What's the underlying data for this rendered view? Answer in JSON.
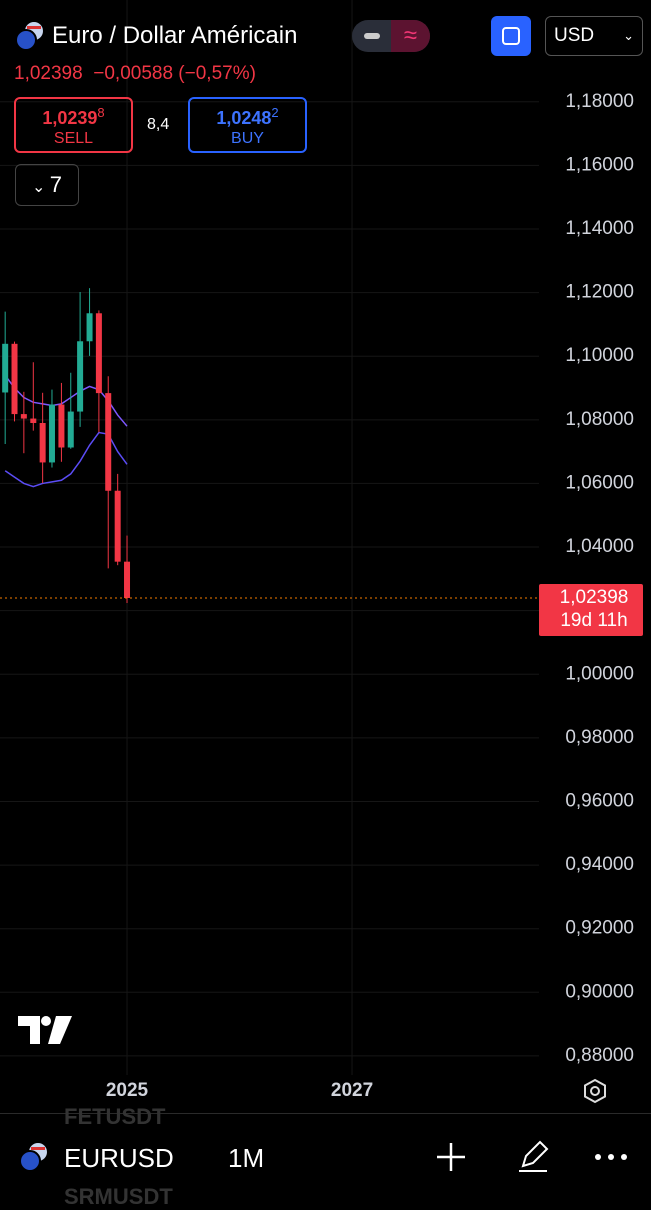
{
  "header": {
    "title": "Euro / Dollar Américain",
    "price": "1,02398",
    "change": "−0,00588 (−0,57%)",
    "sell": {
      "price": "1,0239",
      "pip": "8",
      "label": "SELL"
    },
    "spread": "8,4",
    "buy": {
      "price": "1,0248",
      "pip": "2",
      "label": "BUY"
    },
    "indicators_count": "7",
    "currency": "USD"
  },
  "footer": {
    "symbol": "EURUSD",
    "interval": "1M",
    "ghost_above": "FETUSDT",
    "ghost_below": "SRMUSDT"
  },
  "chart_data": {
    "type": "candlestick",
    "x": [
      2023.917,
      2024.0,
      2024.083,
      2024.167,
      2024.25,
      2024.333,
      2024.417,
      2024.5,
      2024.583,
      2024.667,
      2024.75,
      2024.833,
      2024.917,
      2025.0
    ],
    "open": [
      1.0886,
      1.1039,
      1.0818,
      1.0804,
      1.079,
      1.0666,
      1.0848,
      1.0713,
      1.0826,
      1.1047,
      1.1135,
      1.0884,
      1.0577,
      1.0354
    ],
    "high": [
      1.114,
      1.1046,
      1.0888,
      1.0981,
      1.0885,
      1.0895,
      1.0916,
      1.0948,
      1.1202,
      1.1214,
      1.1144,
      1.0937,
      1.063,
      1.0436
    ],
    "low": [
      1.0724,
      1.0795,
      1.0695,
      1.0766,
      1.0601,
      1.065,
      1.0668,
      1.0709,
      1.0778,
      1.1001,
      1.0761,
      1.0333,
      1.0343,
      1.0224
    ],
    "close": [
      1.1039,
      1.0818,
      1.0804,
      1.079,
      1.0666,
      1.0848,
      1.0713,
      1.0826,
      1.1047,
      1.1135,
      1.0884,
      1.0577,
      1.0354,
      1.02398
    ],
    "up_color": "#22ab94",
    "down_color": "#f23645",
    "lines": [
      {
        "color": "#7e57ff",
        "values": [
          1.094,
          1.09,
          1.087,
          1.0855,
          1.085,
          1.0845,
          1.085,
          1.087,
          1.089,
          1.0905,
          1.0895,
          1.086,
          1.0815,
          1.078
        ]
      },
      {
        "color": "#5b4cf5",
        "values": [
          1.064,
          1.062,
          1.06,
          1.059,
          1.06,
          1.0605,
          1.061,
          1.063,
          1.067,
          1.072,
          1.076,
          1.0755,
          1.07,
          1.066
        ]
      }
    ],
    "xlim": [
      2023.871,
      2028.662
    ],
    "xticks": [
      2025,
      2027
    ],
    "ylim": [
      0.874,
      1.212
    ],
    "yticks": [
      {
        "value": 0.88,
        "label": "0,88000"
      },
      {
        "value": 0.9,
        "label": "0,90000"
      },
      {
        "value": 0.92,
        "label": "0,92000"
      },
      {
        "value": 0.94,
        "label": "0,94000"
      },
      {
        "value": 0.96,
        "label": "0,96000"
      },
      {
        "value": 0.98,
        "label": "0,98000"
      },
      {
        "value": 1.0,
        "label": "1,00000"
      },
      {
        "value": 1.02,
        "label": "1,02000"
      },
      {
        "value": 1.04,
        "label": "1,04000"
      },
      {
        "value": 1.06,
        "label": "1,06000"
      },
      {
        "value": 1.08,
        "label": "1,08000"
      },
      {
        "value": 1.1,
        "label": "1,10000"
      },
      {
        "value": 1.12,
        "label": "1,12000"
      },
      {
        "value": 1.14,
        "label": "1,14000"
      },
      {
        "value": 1.16,
        "label": "1,16000"
      },
      {
        "value": 1.18,
        "label": "1,18000"
      }
    ],
    "last_price": {
      "value": 1.02398,
      "label": "1,02398"
    },
    "countdown": "19d 11h",
    "last_color": "#f23645",
    "grid": true
  }
}
